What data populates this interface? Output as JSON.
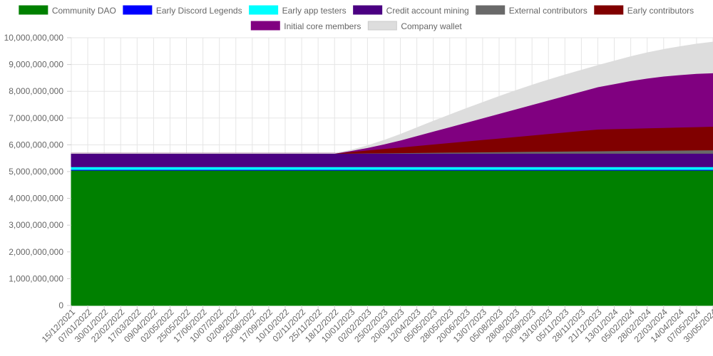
{
  "chart_data": {
    "type": "area",
    "stacked": true,
    "legend_position": "top",
    "grid": true,
    "ylim": [
      0,
      10000000000
    ],
    "y_ticks": [
      "0",
      "1,000,000,000",
      "2,000,000,000",
      "3,000,000,000",
      "4,000,000,000",
      "5,000,000,000",
      "6,000,000,000",
      "7,000,000,000",
      "8,000,000,000",
      "9,000,000,000",
      "10,000,000,000"
    ],
    "y_tick_values": [
      0,
      1000000000,
      2000000000,
      3000000000,
      4000000000,
      5000000000,
      6000000000,
      7000000000,
      8000000000,
      9000000000,
      10000000000
    ],
    "categories": [
      "15/12/2021",
      "07/01/2022",
      "30/01/2022",
      "22/02/2022",
      "17/03/2022",
      "09/04/2022",
      "02/05/2022",
      "25/05/2022",
      "17/06/2022",
      "10/07/2022",
      "02/08/2022",
      "25/08/2022",
      "17/09/2022",
      "10/10/2022",
      "02/11/2022",
      "25/11/2022",
      "18/12/2022",
      "10/01/2023",
      "02/02/2023",
      "25/02/2023",
      "20/03/2023",
      "12/04/2023",
      "05/05/2023",
      "28/05/2023",
      "20/06/2023",
      "13/07/2023",
      "05/08/2023",
      "28/08/2023",
      "20/09/2023",
      "13/10/2023",
      "05/11/2023",
      "28/11/2023",
      "21/12/2023",
      "13/01/2024",
      "05/02/2024",
      "28/02/2024",
      "22/03/2024",
      "14/04/2024",
      "07/05/2024",
      "30/05/2024"
    ],
    "series": [
      {
        "name": "Community DAO",
        "color": "#008000",
        "values": [
          5050000000,
          5050000000,
          5050000000,
          5050000000,
          5050000000,
          5050000000,
          5050000000,
          5050000000,
          5050000000,
          5050000000,
          5050000000,
          5050000000,
          5050000000,
          5050000000,
          5050000000,
          5050000000,
          5050000000,
          5050000000,
          5050000000,
          5050000000,
          5050000000,
          5050000000,
          5050000000,
          5050000000,
          5050000000,
          5050000000,
          5050000000,
          5050000000,
          5050000000,
          5050000000,
          5050000000,
          5050000000,
          5050000000,
          5050000000,
          5050000000,
          5050000000,
          5050000000,
          5050000000,
          5050000000,
          5050000000
        ]
      },
      {
        "name": "Early Discord Legends",
        "color": "#0000ff",
        "values": [
          30000000,
          30000000,
          30000000,
          30000000,
          30000000,
          30000000,
          30000000,
          30000000,
          30000000,
          30000000,
          30000000,
          30000000,
          30000000,
          30000000,
          30000000,
          30000000,
          30000000,
          30000000,
          30000000,
          30000000,
          30000000,
          30000000,
          30000000,
          30000000,
          30000000,
          30000000,
          30000000,
          30000000,
          30000000,
          30000000,
          30000000,
          30000000,
          30000000,
          30000000,
          30000000,
          30000000,
          30000000,
          30000000,
          30000000,
          30000000
        ]
      },
      {
        "name": "Early app testers",
        "color": "#00ffff",
        "values": [
          100000000,
          100000000,
          100000000,
          100000000,
          100000000,
          100000000,
          100000000,
          100000000,
          100000000,
          100000000,
          100000000,
          100000000,
          100000000,
          100000000,
          100000000,
          100000000,
          100000000,
          100000000,
          100000000,
          100000000,
          100000000,
          100000000,
          100000000,
          100000000,
          100000000,
          100000000,
          100000000,
          100000000,
          100000000,
          100000000,
          100000000,
          100000000,
          100000000,
          100000000,
          100000000,
          100000000,
          100000000,
          100000000,
          100000000,
          100000000
        ]
      },
      {
        "name": "Credit account mining",
        "color": "#4b0082",
        "values": [
          500000000,
          500000000,
          500000000,
          500000000,
          500000000,
          500000000,
          500000000,
          500000000,
          500000000,
          500000000,
          500000000,
          500000000,
          500000000,
          500000000,
          500000000,
          500000000,
          500000000,
          500000000,
          500000000,
          500000000,
          500000000,
          500000000,
          500000000,
          500000000,
          500000000,
          500000000,
          500000000,
          500000000,
          500000000,
          500000000,
          500000000,
          500000000,
          500000000,
          500000000,
          500000000,
          500000000,
          500000000,
          500000000,
          500000000,
          500000000
        ]
      },
      {
        "name": "External contributors",
        "color": "#696969",
        "values": [
          0,
          0,
          0,
          0,
          0,
          0,
          0,
          0,
          0,
          0,
          0,
          0,
          0,
          0,
          0,
          0,
          0,
          5000000,
          10000000,
          16000000,
          22000000,
          28000000,
          34000000,
          40000000,
          46000000,
          52000000,
          58000000,
          64000000,
          70000000,
          76000000,
          82000000,
          88000000,
          93000000,
          98000000,
          103000000,
          108000000,
          113000000,
          118000000,
          123000000,
          128000000
        ]
      },
      {
        "name": "Early contributors",
        "color": "#800000",
        "values": [
          0,
          0,
          0,
          0,
          0,
          0,
          0,
          0,
          0,
          0,
          0,
          0,
          0,
          0,
          0,
          0,
          0,
          60000000,
          110000000,
          160000000,
          210000000,
          260000000,
          310000000,
          360000000,
          410000000,
          460000000,
          510000000,
          560000000,
          610000000,
          660000000,
          710000000,
          760000000,
          810000000,
          820000000,
          830000000,
          840000000,
          850000000,
          860000000,
          870000000,
          880000000
        ]
      },
      {
        "name": "Initial core members",
        "color": "#800080",
        "values": [
          0,
          0,
          0,
          0,
          0,
          0,
          0,
          0,
          0,
          0,
          0,
          0,
          0,
          0,
          0,
          0,
          0,
          35000000,
          95000000,
          170000000,
          260000000,
          370000000,
          480000000,
          590000000,
          700000000,
          810000000,
          920000000,
          1030000000,
          1140000000,
          1250000000,
          1360000000,
          1470000000,
          1580000000,
          1680000000,
          1780000000,
          1860000000,
          1920000000,
          1960000000,
          1990000000,
          2000000000
        ]
      },
      {
        "name": "Company wallet",
        "color": "#dddddd",
        "values": [
          0,
          0,
          0,
          0,
          0,
          0,
          0,
          0,
          0,
          0,
          0,
          0,
          0,
          0,
          0,
          0,
          0,
          20000000,
          70000000,
          140000000,
          220000000,
          300000000,
          380000000,
          450000000,
          520000000,
          580000000,
          640000000,
          690000000,
          730000000,
          760000000,
          780000000,
          790000000,
          800000000,
          850000000,
          900000000,
          950000000,
          1000000000,
          1050000000,
          1100000000,
          1150000000
        ]
      }
    ]
  }
}
